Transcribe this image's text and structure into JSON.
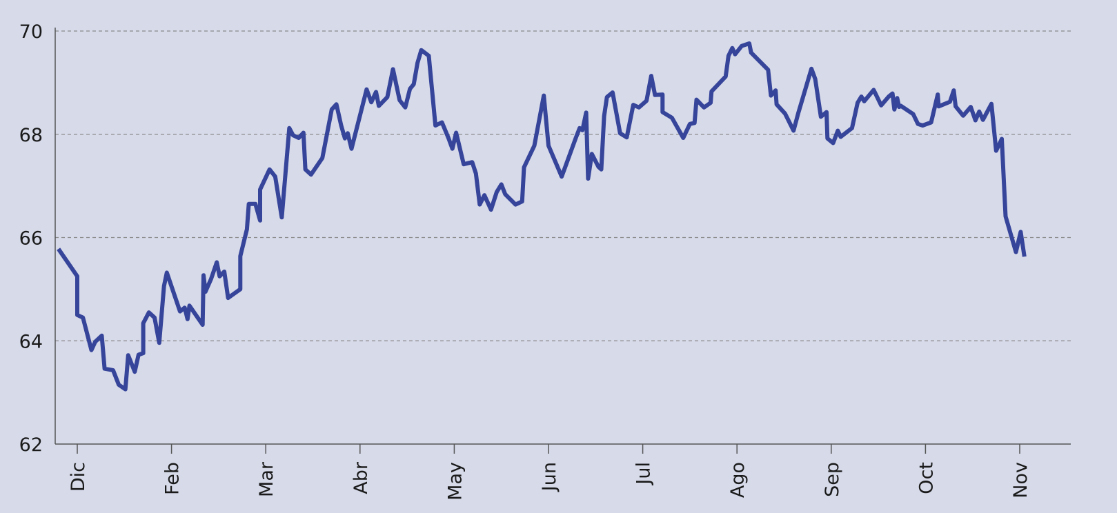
{
  "chart_data": {
    "type": "line",
    "title": "",
    "xlabel": "",
    "ylabel": "",
    "ylim": [
      62,
      70
    ],
    "yticks": [
      62,
      64,
      66,
      68,
      70
    ],
    "grid": "horizontal dashed",
    "x_ticks": [
      {
        "label": "Dic",
        "t": 0.0
      },
      {
        "label": "Feb",
        "t": 1.0
      },
      {
        "label": "Mar",
        "t": 2.0
      },
      {
        "label": "Abr",
        "t": 3.0
      },
      {
        "label": "May",
        "t": 4.0
      },
      {
        "label": "Jun",
        "t": 5.0
      },
      {
        "label": "Jul",
        "t": 6.0
      },
      {
        "label": "Ago",
        "t": 7.0
      },
      {
        "label": "Sep",
        "t": 8.0
      },
      {
        "label": "Oct",
        "t": 9.0
      },
      {
        "label": "Nov",
        "t": 10.0
      }
    ],
    "colors": {
      "background": "#d6dae9",
      "line": "#36449a",
      "grid": "#8a8a8a",
      "axis": "#555555",
      "text": "#1a1a1a"
    },
    "series": [
      {
        "points": [
          [
            -0.2,
            65.78
          ],
          [
            0.0,
            65.25
          ],
          [
            0.0,
            64.5
          ],
          [
            0.06,
            64.45
          ],
          [
            0.15,
            63.82
          ],
          [
            0.19,
            63.98
          ],
          [
            0.26,
            64.1
          ],
          [
            0.29,
            63.46
          ],
          [
            0.38,
            63.43
          ],
          [
            0.44,
            63.15
          ],
          [
            0.51,
            63.06
          ],
          [
            0.54,
            63.72
          ],
          [
            0.61,
            63.4
          ],
          [
            0.65,
            63.73
          ],
          [
            0.7,
            63.76
          ],
          [
            0.7,
            64.34
          ],
          [
            0.76,
            64.55
          ],
          [
            0.82,
            64.45
          ],
          [
            0.87,
            63.96
          ],
          [
            0.92,
            65.06
          ],
          [
            0.95,
            65.32
          ],
          [
            1.09,
            64.57
          ],
          [
            1.14,
            64.64
          ],
          [
            1.17,
            64.42
          ],
          [
            1.19,
            64.68
          ],
          [
            1.33,
            64.31
          ],
          [
            1.34,
            65.27
          ],
          [
            1.36,
            64.95
          ],
          [
            1.42,
            65.2
          ],
          [
            1.48,
            65.52
          ],
          [
            1.51,
            65.25
          ],
          [
            1.56,
            65.34
          ],
          [
            1.6,
            64.83
          ],
          [
            1.73,
            65.0
          ],
          [
            1.73,
            65.64
          ],
          [
            1.8,
            66.16
          ],
          [
            1.82,
            66.65
          ],
          [
            1.89,
            66.65
          ],
          [
            1.94,
            66.33
          ],
          [
            1.94,
            66.93
          ],
          [
            2.04,
            67.32
          ],
          [
            2.1,
            67.18
          ],
          [
            2.17,
            66.39
          ],
          [
            2.25,
            68.12
          ],
          [
            2.29,
            67.98
          ],
          [
            2.35,
            67.93
          ],
          [
            2.4,
            68.03
          ],
          [
            2.42,
            67.32
          ],
          [
            2.48,
            67.22
          ],
          [
            2.6,
            67.54
          ],
          [
            2.7,
            68.48
          ],
          [
            2.75,
            68.58
          ],
          [
            2.8,
            68.17
          ],
          [
            2.84,
            67.92
          ],
          [
            2.87,
            68.02
          ],
          [
            2.91,
            67.72
          ],
          [
            3.07,
            68.87
          ],
          [
            3.12,
            68.62
          ],
          [
            3.17,
            68.82
          ],
          [
            3.2,
            68.55
          ],
          [
            3.29,
            68.72
          ],
          [
            3.35,
            69.26
          ],
          [
            3.42,
            68.66
          ],
          [
            3.48,
            68.52
          ],
          [
            3.53,
            68.88
          ],
          [
            3.57,
            68.97
          ],
          [
            3.61,
            69.38
          ],
          [
            3.65,
            69.63
          ],
          [
            3.73,
            69.52
          ],
          [
            3.8,
            68.17
          ],
          [
            3.87,
            68.23
          ],
          [
            3.94,
            67.92
          ],
          [
            3.98,
            67.72
          ],
          [
            4.02,
            68.03
          ],
          [
            4.1,
            67.42
          ],
          [
            4.19,
            67.46
          ],
          [
            4.23,
            67.24
          ],
          [
            4.27,
            66.64
          ],
          [
            4.32,
            66.82
          ],
          [
            4.39,
            66.54
          ],
          [
            4.45,
            66.88
          ],
          [
            4.5,
            67.03
          ],
          [
            4.54,
            66.84
          ],
          [
            4.65,
            66.64
          ],
          [
            4.72,
            66.7
          ],
          [
            4.74,
            67.36
          ],
          [
            4.85,
            67.78
          ],
          [
            4.95,
            68.75
          ],
          [
            5.0,
            67.78
          ],
          [
            5.14,
            67.18
          ],
          [
            5.18,
            67.38
          ],
          [
            5.29,
            67.93
          ],
          [
            5.33,
            68.12
          ],
          [
            5.36,
            68.08
          ],
          [
            5.4,
            68.42
          ],
          [
            5.42,
            67.14
          ],
          [
            5.46,
            67.62
          ],
          [
            5.53,
            67.37
          ],
          [
            5.56,
            67.32
          ],
          [
            5.59,
            68.35
          ],
          [
            5.62,
            68.72
          ],
          [
            5.68,
            68.81
          ],
          [
            5.76,
            68.02
          ],
          [
            5.83,
            67.94
          ],
          [
            5.9,
            68.57
          ],
          [
            5.96,
            68.52
          ],
          [
            6.04,
            68.65
          ],
          [
            6.09,
            69.13
          ],
          [
            6.13,
            68.76
          ],
          [
            6.21,
            68.77
          ],
          [
            6.21,
            68.43
          ],
          [
            6.31,
            68.32
          ],
          [
            6.43,
            67.93
          ],
          [
            6.5,
            68.2
          ],
          [
            6.55,
            68.22
          ],
          [
            6.57,
            68.67
          ],
          [
            6.65,
            68.52
          ],
          [
            6.72,
            68.61
          ],
          [
            6.73,
            68.83
          ],
          [
            6.88,
            69.12
          ],
          [
            6.91,
            69.52
          ],
          [
            6.95,
            69.67
          ],
          [
            6.98,
            69.55
          ],
          [
            7.05,
            69.71
          ],
          [
            7.13,
            69.76
          ],
          [
            7.15,
            69.58
          ],
          [
            7.33,
            69.25
          ],
          [
            7.36,
            68.75
          ],
          [
            7.41,
            68.85
          ],
          [
            7.42,
            68.58
          ],
          [
            7.51,
            68.4
          ],
          [
            7.6,
            68.07
          ],
          [
            7.65,
            68.41
          ],
          [
            7.79,
            69.27
          ],
          [
            7.83,
            69.07
          ],
          [
            7.89,
            68.34
          ],
          [
            7.95,
            68.43
          ],
          [
            7.96,
            67.92
          ],
          [
            8.02,
            67.83
          ],
          [
            8.07,
            68.07
          ],
          [
            8.1,
            67.95
          ],
          [
            8.22,
            68.12
          ],
          [
            8.28,
            68.61
          ],
          [
            8.32,
            68.73
          ],
          [
            8.35,
            68.64
          ],
          [
            8.45,
            68.86
          ],
          [
            8.53,
            68.56
          ],
          [
            8.61,
            68.73
          ],
          [
            8.65,
            68.79
          ],
          [
            8.67,
            68.48
          ],
          [
            8.7,
            68.7
          ],
          [
            8.72,
            68.53
          ],
          [
            8.74,
            68.55
          ],
          [
            8.87,
            68.39
          ],
          [
            8.92,
            68.2
          ],
          [
            8.97,
            68.17
          ],
          [
            9.06,
            68.23
          ],
          [
            9.13,
            68.77
          ],
          [
            9.14,
            68.54
          ],
          [
            9.26,
            68.63
          ],
          [
            9.3,
            68.85
          ],
          [
            9.32,
            68.54
          ],
          [
            9.4,
            68.36
          ],
          [
            9.48,
            68.53
          ],
          [
            9.53,
            68.27
          ],
          [
            9.57,
            68.44
          ],
          [
            9.61,
            68.28
          ],
          [
            9.7,
            68.59
          ],
          [
            9.75,
            67.68
          ],
          [
            9.81,
            67.91
          ],
          [
            9.85,
            66.41
          ],
          [
            9.96,
            65.72
          ],
          [
            10.01,
            66.11
          ],
          [
            10.05,
            65.63
          ]
        ]
      }
    ]
  }
}
